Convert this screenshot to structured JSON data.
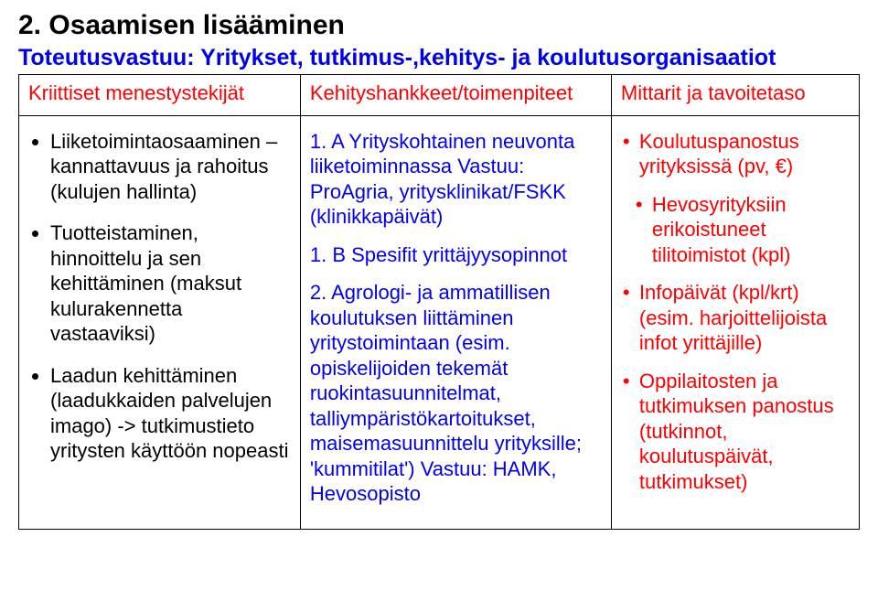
{
  "heading": "2. Osaamisen lisääminen",
  "subheading": "Toteutusvastuu: Yritykset, tutkimus-,kehitys- ja koulutusorganisaatiot",
  "table": {
    "headers": {
      "col1": "Kriittiset menestystekijät",
      "col2": "Kehityshankkeet/toimenpiteet",
      "col3": "Mittarit ja tavoitetaso"
    },
    "col1": {
      "item1": "Liiketoimintaosaaminen – kannattavuus ja rahoitus (kulujen hallinta)",
      "item2": "Tuotteistaminen, hinnoittelu ja sen kehittäminen (maksut kulurakennetta vastaaviksi)",
      "item3": "Laadun kehittäminen (laadukkaiden palvelujen imago) -> tutkimustieto yritysten käyttöön nopeasti"
    },
    "col2": {
      "p1": "1. A Yrityskohtainen neuvonta liiketoiminnassa Vastuu: ProAgria, yritysklinikat/FSKK (klinikkapäivät)",
      "p2": "1. B Spesifit yrittäjyysopinnot",
      "p3": "2. Agrologi- ja ammatillisen koulutuksen liittäminen yritystoimintaan (esim. opiskelijoiden tekemät ruokintasuunnitelmat, talliympäristökartoitukset, maisemasuunnittelu yrityksille; 'kummitilat') Vastuu: HAMK, Hevosopisto"
    },
    "col3": {
      "item1": "Koulutuspanostus yrityksissä (pv, €)",
      "item2": "Hevosyrityksiin erikoistuneet tilitoimistot (kpl)",
      "item3": "Infopäivät (kpl/krt) (esim. harjoittelijoista infot yrittäjille)",
      "item4": "Oppilaitosten ja tutkimuksen panostus (tutkinnot, koulutuspäivät, tutkimukset)"
    }
  }
}
